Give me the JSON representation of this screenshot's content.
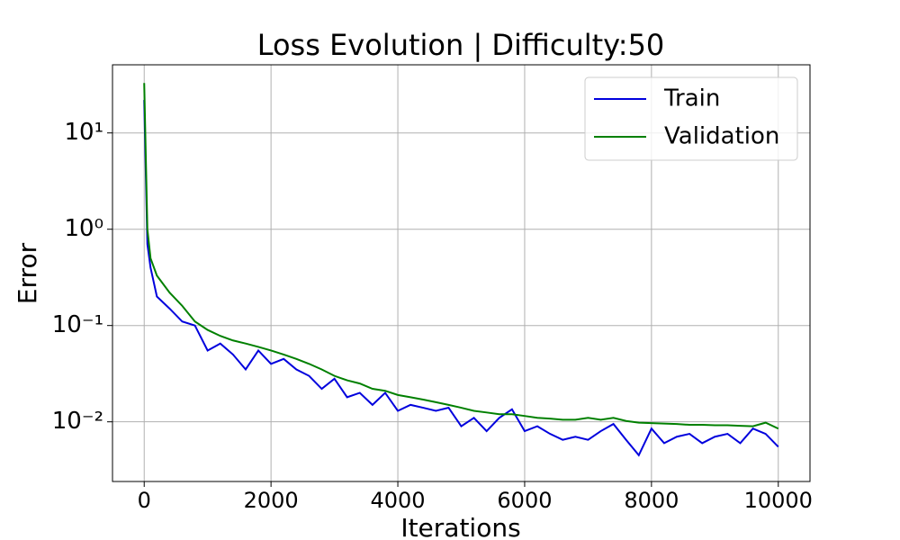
{
  "chart_data": {
    "type": "line",
    "title": "Loss Evolution | Difficulty:50",
    "xlabel": "Iterations",
    "ylabel": "Error",
    "x": [
      0,
      50,
      100,
      200,
      400,
      600,
      800,
      1000,
      1200,
      1400,
      1600,
      1800,
      2000,
      2200,
      2400,
      2600,
      2800,
      3000,
      3200,
      3400,
      3600,
      3800,
      4000,
      4200,
      4400,
      4600,
      4800,
      5000,
      5200,
      5400,
      5600,
      5800,
      6000,
      6200,
      6400,
      6600,
      6800,
      7000,
      7200,
      7400,
      7600,
      7800,
      8000,
      8200,
      8400,
      8600,
      8800,
      9000,
      9200,
      9400,
      9600,
      9800,
      10000
    ],
    "series": [
      {
        "name": "Train",
        "color": "#0000dd",
        "values": [
          22,
          0.7,
          0.4,
          0.2,
          0.15,
          0.11,
          0.1,
          0.055,
          0.065,
          0.05,
          0.035,
          0.055,
          0.04,
          0.045,
          0.035,
          0.03,
          0.022,
          0.028,
          0.018,
          0.02,
          0.015,
          0.02,
          0.013,
          0.015,
          0.014,
          0.013,
          0.014,
          0.009,
          0.011,
          0.008,
          0.011,
          0.0135,
          0.008,
          0.009,
          0.0075,
          0.0065,
          0.007,
          0.0065,
          0.008,
          0.0095,
          0.0065,
          0.0045,
          0.0085,
          0.006,
          0.007,
          0.0075,
          0.006,
          0.007,
          0.0075,
          0.006,
          0.0085,
          0.0075,
          0.0055
        ]
      },
      {
        "name": "Validation",
        "color": "#008000",
        "values": [
          33,
          1.0,
          0.5,
          0.33,
          0.22,
          0.16,
          0.11,
          0.09,
          0.078,
          0.07,
          0.065,
          0.06,
          0.055,
          0.05,
          0.045,
          0.04,
          0.035,
          0.03,
          0.027,
          0.025,
          0.022,
          0.021,
          0.019,
          0.018,
          0.017,
          0.016,
          0.015,
          0.014,
          0.013,
          0.0125,
          0.012,
          0.012,
          0.0115,
          0.011,
          0.0108,
          0.0105,
          0.0105,
          0.011,
          0.0105,
          0.011,
          0.0102,
          0.0098,
          0.0097,
          0.0096,
          0.0095,
          0.0093,
          0.0093,
          0.0092,
          0.0092,
          0.0091,
          0.009,
          0.0098,
          0.0085
        ]
      }
    ],
    "xlim": [
      -500,
      10500
    ],
    "xticks": [
      0,
      2000,
      4000,
      6000,
      8000,
      10000
    ],
    "ylim": [
      0.0024,
      51
    ],
    "ylog": true,
    "yticks": [
      {
        "value": 0.01,
        "label": "10⁻²"
      },
      {
        "value": 0.1,
        "label": "10⁻¹"
      },
      {
        "value": 1,
        "label": "10⁰"
      },
      {
        "value": 10,
        "label": "10¹"
      }
    ],
    "grid": true,
    "legend": "upper right"
  }
}
